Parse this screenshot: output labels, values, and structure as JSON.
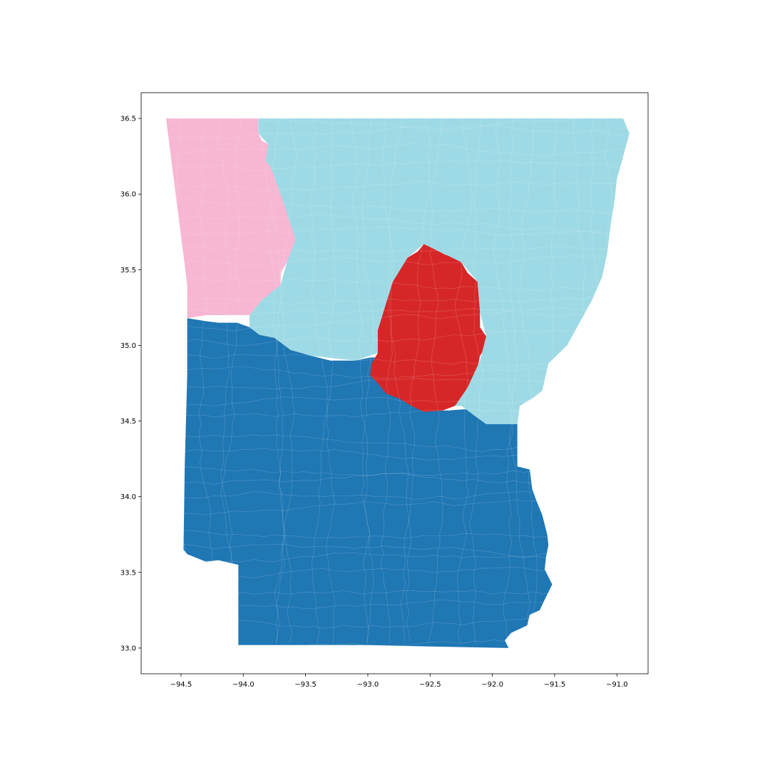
{
  "chart_data": {
    "type": "map",
    "title": "",
    "xlabel": "",
    "ylabel": "",
    "xlim": [
      -94.82,
      -90.75
    ],
    "ylim": [
      32.83,
      36.67
    ],
    "x_ticks": [
      {
        "value": -94.5,
        "label": "−94.5"
      },
      {
        "value": -94.0,
        "label": "−94.0"
      },
      {
        "value": -93.5,
        "label": "−93.5"
      },
      {
        "value": -93.0,
        "label": "−93.0"
      },
      {
        "value": -92.5,
        "label": "−92.5"
      },
      {
        "value": -92.0,
        "label": "−92.0"
      },
      {
        "value": -91.5,
        "label": "−91.5"
      },
      {
        "value": -91.0,
        "label": "−91.0"
      }
    ],
    "y_ticks": [
      {
        "value": 33.0,
        "label": "33.0"
      },
      {
        "value": 33.5,
        "label": "33.5"
      },
      {
        "value": 34.0,
        "label": "34.0"
      },
      {
        "value": 34.5,
        "label": "34.5"
      },
      {
        "value": 35.0,
        "label": "35.0"
      },
      {
        "value": 35.5,
        "label": "35.5"
      },
      {
        "value": 36.0,
        "label": "36.0"
      },
      {
        "value": 36.5,
        "label": "36.5"
      }
    ],
    "grid": false,
    "legend": "none",
    "regions": [
      {
        "color": "#1f77b4",
        "polygon": [
          [
            -94.45,
            35.18
          ],
          [
            -94.3,
            35.16
          ],
          [
            -94.2,
            35.15
          ],
          [
            -94.05,
            35.15
          ],
          [
            -93.95,
            35.12
          ],
          [
            -93.87,
            35.07
          ],
          [
            -93.75,
            35.05
          ],
          [
            -93.62,
            34.97
          ],
          [
            -93.45,
            34.93
          ],
          [
            -93.3,
            34.9
          ],
          [
            -93.1,
            34.9
          ],
          [
            -92.98,
            34.92
          ],
          [
            -92.9,
            34.92
          ],
          [
            -92.92,
            34.85
          ],
          [
            -92.9,
            34.8
          ],
          [
            -92.87,
            34.7
          ],
          [
            -92.7,
            34.65
          ],
          [
            -92.6,
            34.63
          ],
          [
            -92.55,
            34.57
          ],
          [
            -92.35,
            34.57
          ],
          [
            -92.2,
            34.58
          ],
          [
            -92.15,
            34.54
          ],
          [
            -92.05,
            34.48
          ],
          [
            -91.8,
            34.48
          ],
          [
            -91.8,
            34.2
          ],
          [
            -91.7,
            34.18
          ],
          [
            -91.68,
            34.05
          ],
          [
            -91.65,
            33.98
          ],
          [
            -91.6,
            33.88
          ],
          [
            -91.56,
            33.75
          ],
          [
            -91.55,
            33.68
          ],
          [
            -91.57,
            33.6
          ],
          [
            -91.58,
            33.52
          ],
          [
            -91.52,
            33.42
          ],
          [
            -91.58,
            33.32
          ],
          [
            -91.62,
            33.25
          ],
          [
            -91.7,
            33.22
          ],
          [
            -91.72,
            33.15
          ],
          [
            -91.85,
            33.1
          ],
          [
            -91.9,
            33.05
          ],
          [
            -91.87,
            33.0
          ],
          [
            -92.5,
            33.01
          ],
          [
            -93.0,
            33.02
          ],
          [
            -93.5,
            33.02
          ],
          [
            -94.04,
            33.02
          ],
          [
            -94.04,
            33.55
          ],
          [
            -94.2,
            33.58
          ],
          [
            -94.3,
            33.57
          ],
          [
            -94.45,
            33.62
          ],
          [
            -94.48,
            33.65
          ],
          [
            -94.47,
            34.2
          ],
          [
            -94.45,
            34.8
          ],
          [
            -94.45,
            35.18
          ]
        ]
      },
      {
        "color": "#d62728",
        "polygon": [
          [
            -92.55,
            35.67
          ],
          [
            -92.45,
            35.63
          ],
          [
            -92.38,
            35.6
          ],
          [
            -92.3,
            35.58
          ],
          [
            -92.25,
            35.55
          ],
          [
            -92.2,
            35.48
          ],
          [
            -92.12,
            35.42
          ],
          [
            -92.08,
            35.33
          ],
          [
            -92.1,
            35.22
          ],
          [
            -92.1,
            35.12
          ],
          [
            -92.05,
            35.06
          ],
          [
            -92.05,
            35.0
          ],
          [
            -92.1,
            34.93
          ],
          [
            -92.12,
            34.85
          ],
          [
            -92.16,
            34.78
          ],
          [
            -92.2,
            34.72
          ],
          [
            -92.25,
            34.65
          ],
          [
            -92.3,
            34.6
          ],
          [
            -92.4,
            34.57
          ],
          [
            -92.55,
            34.56
          ],
          [
            -92.65,
            34.6
          ],
          [
            -92.75,
            34.65
          ],
          [
            -92.85,
            34.68
          ],
          [
            -92.92,
            34.75
          ],
          [
            -92.98,
            34.8
          ],
          [
            -92.97,
            34.88
          ],
          [
            -92.92,
            34.95
          ],
          [
            -92.95,
            35.03
          ],
          [
            -92.93,
            35.1
          ],
          [
            -92.93,
            35.18
          ],
          [
            -92.9,
            35.25
          ],
          [
            -92.85,
            35.33
          ],
          [
            -92.8,
            35.42
          ],
          [
            -92.75,
            35.52
          ],
          [
            -92.68,
            35.58
          ],
          [
            -92.6,
            35.62
          ],
          [
            -92.55,
            35.67
          ]
        ]
      },
      {
        "color": "#f7b6d2",
        "polygon": [
          [
            -94.62,
            36.5
          ],
          [
            -93.88,
            36.5
          ],
          [
            -93.88,
            36.4
          ],
          [
            -93.85,
            36.35
          ],
          [
            -93.8,
            36.33
          ],
          [
            -93.82,
            36.22
          ],
          [
            -93.78,
            36.18
          ],
          [
            -93.7,
            36.1
          ],
          [
            -93.68,
            35.95
          ],
          [
            -93.62,
            35.83
          ],
          [
            -93.58,
            35.7
          ],
          [
            -93.57,
            35.62
          ],
          [
            -93.65,
            35.55
          ],
          [
            -93.7,
            35.48
          ],
          [
            -93.7,
            35.4
          ],
          [
            -93.75,
            35.35
          ],
          [
            -93.85,
            35.3
          ],
          [
            -93.95,
            35.2
          ],
          [
            -94.1,
            35.2
          ],
          [
            -94.3,
            35.2
          ],
          [
            -94.45,
            35.18
          ],
          [
            -94.45,
            35.4
          ],
          [
            -94.62,
            36.5
          ]
        ]
      },
      {
        "color": "#9edae5",
        "polygon": [
          [
            -93.88,
            36.5
          ],
          [
            -90.95,
            36.5
          ],
          [
            -90.9,
            36.4
          ],
          [
            -90.95,
            36.25
          ],
          [
            -91.0,
            36.1
          ],
          [
            -91.02,
            35.95
          ],
          [
            -91.05,
            35.8
          ],
          [
            -91.08,
            35.6
          ],
          [
            -91.12,
            35.45
          ],
          [
            -91.2,
            35.3
          ],
          [
            -91.3,
            35.15
          ],
          [
            -91.4,
            35.0
          ],
          [
            -91.55,
            34.88
          ],
          [
            -91.6,
            34.7
          ],
          [
            -91.68,
            34.65
          ],
          [
            -91.78,
            34.6
          ],
          [
            -91.8,
            34.48
          ],
          [
            -92.05,
            34.48
          ],
          [
            -92.15,
            34.54
          ],
          [
            -92.25,
            34.6
          ],
          [
            -92.3,
            34.6
          ],
          [
            -92.2,
            34.72
          ],
          [
            -92.1,
            34.9
          ],
          [
            -92.05,
            35.06
          ],
          [
            -92.1,
            35.22
          ],
          [
            -92.12,
            35.42
          ],
          [
            -92.25,
            35.55
          ],
          [
            -92.45,
            35.63
          ],
          [
            -92.55,
            35.67
          ],
          [
            -92.68,
            35.58
          ],
          [
            -92.8,
            35.42
          ],
          [
            -92.92,
            35.1
          ],
          [
            -92.92,
            34.95
          ],
          [
            -93.1,
            34.9
          ],
          [
            -93.45,
            34.93
          ],
          [
            -93.62,
            34.97
          ],
          [
            -93.75,
            35.05
          ],
          [
            -93.87,
            35.07
          ],
          [
            -93.95,
            35.12
          ],
          [
            -93.95,
            35.2
          ],
          [
            -93.85,
            35.3
          ],
          [
            -93.7,
            35.4
          ],
          [
            -93.65,
            35.55
          ],
          [
            -93.58,
            35.7
          ],
          [
            -93.68,
            35.95
          ],
          [
            -93.78,
            36.18
          ],
          [
            -93.82,
            36.22
          ],
          [
            -93.8,
            36.33
          ],
          [
            -93.88,
            36.4
          ],
          [
            -93.88,
            36.5
          ]
        ]
      }
    ]
  }
}
